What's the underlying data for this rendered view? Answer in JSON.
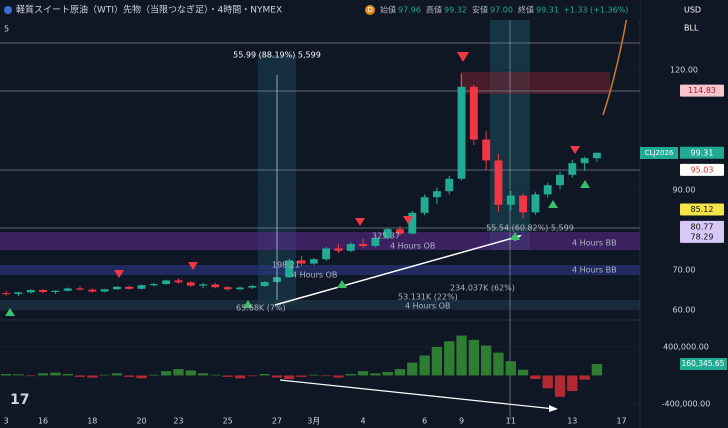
{
  "header": {
    "title": "軽質スイート原油（WTI）先物（当限つなぎ足）・4時間・NYMEX",
    "badge": "D",
    "ohlc": [
      {
        "label": "始値",
        "value": "97.96"
      },
      {
        "label": "高値",
        "value": "99.32"
      },
      {
        "label": "安値",
        "value": "97.00"
      },
      {
        "label": "終値",
        "value": "99.31"
      }
    ],
    "change": "+1.33 (+1.36%)",
    "interval": "5",
    "currency": "USD",
    "unit": "BLL",
    "symbol": "CLJ2026"
  },
  "annotations": [
    "55.99 (88.19%) 5,599",
    "55.54 (60.82%) 5,599",
    "198.21",
    "325.37",
    "4 Hours OB",
    "4 Hours OB",
    "4 Hours BB",
    "4 Hours BB",
    "234.037K (62%)",
    "53.131K (22%)",
    "4 Hours OB",
    "65.68K (7%)"
  ],
  "chart_data": [
    {
      "type": "candlestick",
      "categories": [
        "3",
        null,
        null,
        "16",
        null,
        null,
        null,
        "18",
        null,
        null,
        null,
        "20",
        null,
        null,
        "23",
        null,
        null,
        null,
        "25",
        null,
        null,
        null,
        "27",
        null,
        null,
        "3月",
        null,
        null,
        null,
        "4",
        null,
        null,
        null,
        null,
        "6",
        null,
        null,
        "9",
        null,
        null,
        null,
        "11",
        null,
        null,
        null,
        null,
        "13",
        null,
        null,
        null,
        "17",
        null
      ],
      "open": [
        64.2,
        64.0,
        64.4,
        65.0,
        64.5,
        64.8,
        65.4,
        65.1,
        64.6,
        65.2,
        65.8,
        65.3,
        66.2,
        66.5,
        67.4,
        66.9,
        66.1,
        66.4,
        65.7,
        65.2,
        65.6,
        66.0,
        67.0,
        68.2,
        72.4,
        71.6,
        72.7,
        75.4,
        74.8,
        76.5,
        76.0,
        78.0,
        80.2,
        79.1,
        84.3,
        88.2,
        89.7,
        92.8,
        115.8,
        102.6,
        97.4,
        86.3,
        88.6,
        84.4,
        88.9,
        91.2,
        93.8,
        96.7,
        97.96,
        null,
        null,
        null
      ],
      "high": [
        64.8,
        64.6,
        65.2,
        65.3,
        65.0,
        65.6,
        65.9,
        65.4,
        65.3,
        66.0,
        66.1,
        66.4,
        66.8,
        67.6,
        67.9,
        67.2,
        66.7,
        66.8,
        66.0,
        65.9,
        66.3,
        67.2,
        68.5,
        72.8,
        73.5,
        73.0,
        75.8,
        76.6,
        76.9,
        77.8,
        78.4,
        80.6,
        81.0,
        84.8,
        88.9,
        90.6,
        93.5,
        119.0,
        116.4,
        104.8,
        99.0,
        89.8,
        89.1,
        89.6,
        91.8,
        94.6,
        97.5,
        98.3,
        99.32,
        null,
        null,
        null
      ],
      "low": [
        63.6,
        63.5,
        64.1,
        64.2,
        64.0,
        64.6,
        64.9,
        64.3,
        64.4,
        65.0,
        65.0,
        65.1,
        65.9,
        66.3,
        66.6,
        65.8,
        65.5,
        65.4,
        64.8,
        64.9,
        65.3,
        65.8,
        66.8,
        68.0,
        71.0,
        71.2,
        72.3,
        74.2,
        74.5,
        75.6,
        75.7,
        77.6,
        78.6,
        78.9,
        83.7,
        86.4,
        88.9,
        92.4,
        101.2,
        95.1,
        84.6,
        84.9,
        82.9,
        83.8,
        88.1,
        90.2,
        93.1,
        94.8,
        97.0,
        null,
        null,
        null
      ],
      "close": [
        64.0,
        64.4,
        65.0,
        64.5,
        64.8,
        65.4,
        65.1,
        64.6,
        65.2,
        65.8,
        65.3,
        66.2,
        66.5,
        67.4,
        66.9,
        66.1,
        66.4,
        65.7,
        65.2,
        65.6,
        66.0,
        67.0,
        68.2,
        72.4,
        71.6,
        72.7,
        75.4,
        74.8,
        76.5,
        76.0,
        78.0,
        80.2,
        79.1,
        84.3,
        88.2,
        89.7,
        92.8,
        115.8,
        102.6,
        97.4,
        86.3,
        88.6,
        84.4,
        88.9,
        91.2,
        93.8,
        96.7,
        97.96,
        99.31,
        null,
        null,
        null
      ],
      "up_color": "#22ab94",
      "down_color": "#f23645",
      "ylim": [
        58,
        132.5
      ],
      "yticks": [
        {
          "value": 60,
          "label": "60.00"
        },
        {
          "value": 70,
          "label": "70.00"
        },
        {
          "value": 90,
          "label": "90.00"
        },
        {
          "value": 120,
          "label": "120.00"
        }
      ],
      "price_tags": [
        {
          "value": 114.83,
          "color": "#f7c6cc",
          "text_color": "#b0182b"
        },
        {
          "value": 99.31,
          "color": "#22ab94",
          "text_color": "#ffffff"
        },
        {
          "value": 95.03,
          "color": "#ffffff",
          "text_color": "#d32f2f"
        },
        {
          "value": 85.12,
          "color": "#f5e34a",
          "text_color": "#111111"
        },
        {
          "value": 80.77,
          "color": "#d7c8f5",
          "text_color": "#111111"
        },
        {
          "value": 78.29,
          "color": "#d7c8f5",
          "text_color": "#111111"
        }
      ]
    },
    {
      "type": "bar",
      "values": [
        20000,
        15000,
        -10000,
        30000,
        40000,
        20000,
        -20000,
        -30000,
        10000,
        30000,
        -20000,
        -40000,
        10000,
        60000,
        90000,
        70000,
        30000,
        10000,
        -20000,
        -40000,
        -10000,
        20000,
        -30000,
        -50000,
        -20000,
        10000,
        -10000,
        -30000,
        20000,
        60000,
        30000,
        50000,
        90000,
        180000,
        280000,
        400000,
        480000,
        560000,
        500000,
        420000,
        320000,
        200000,
        80000,
        -50000,
        -180000,
        -300000,
        -220000,
        -60000,
        160345.65,
        null,
        null,
        null
      ],
      "up_color": "#2e7d32",
      "down_color": "#b22833",
      "ylim": [
        -625000,
        750000
      ],
      "yticks": [
        {
          "value": 400000,
          "label": "400,000.00"
        },
        {
          "value": -400000,
          "label": "-400,000.00"
        }
      ],
      "last_tag": {
        "value": 160345.65,
        "label": "160,345.65",
        "color": "#22ab94"
      }
    }
  ]
}
